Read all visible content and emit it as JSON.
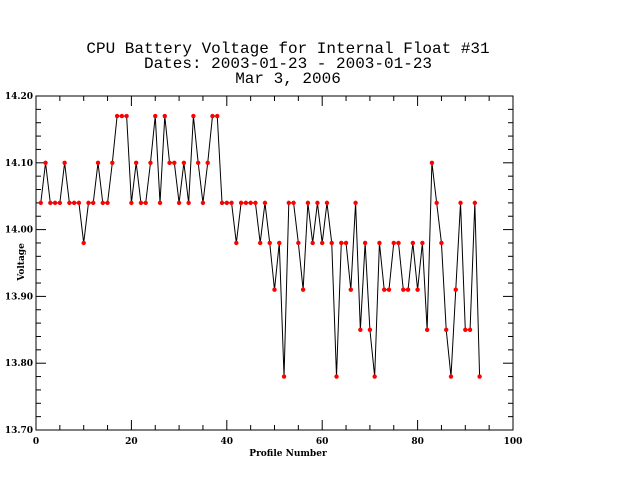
{
  "chart_data": {
    "type": "line",
    "title": [
      "CPU Battery Voltage for Internal Float #31",
      "Dates:  2003-01-23 -  2003-01-23",
      "Mar  3, 2006"
    ],
    "xlabel": "Profile Number",
    "ylabel": "Voltage",
    "xlim": [
      0,
      100
    ],
    "ylim": [
      13.7,
      14.2
    ],
    "xticks": [
      0,
      20,
      40,
      60,
      80,
      100
    ],
    "xtick_labels": [
      "0",
      "20",
      "40",
      "60",
      "80",
      "100"
    ],
    "yticks": [
      13.7,
      13.8,
      13.9,
      14.0,
      14.1,
      14.2
    ],
    "ytick_labels": [
      "13.70",
      "13.80",
      "13.90",
      "14.00",
      "14.10",
      "14.20"
    ],
    "grid": false,
    "line_color": "#000000",
    "marker_color": "#ff0000",
    "series": [
      {
        "x": [
          1,
          2,
          3,
          4,
          5,
          6,
          7,
          8,
          9,
          10,
          11,
          12,
          13,
          14,
          15,
          16,
          17,
          18,
          19,
          20,
          21,
          22,
          23,
          24,
          25,
          26,
          27,
          28,
          29,
          30,
          31,
          32,
          33,
          34,
          35,
          36,
          37,
          38,
          39,
          40,
          41,
          42,
          43,
          44,
          45,
          46,
          47,
          48,
          49,
          50,
          51,
          52,
          53,
          54,
          55,
          56,
          57,
          58,
          59,
          60,
          61,
          62,
          63,
          64,
          65,
          66,
          67,
          68,
          69,
          70,
          71,
          72,
          73,
          74,
          75,
          76,
          77,
          78,
          79,
          80,
          81,
          82,
          83,
          84,
          85,
          86,
          87,
          88,
          89,
          90,
          91,
          92,
          93
        ],
        "y": [
          14.04,
          14.1,
          14.04,
          14.04,
          14.04,
          14.1,
          14.04,
          14.04,
          14.04,
          13.98,
          14.04,
          14.04,
          14.1,
          14.04,
          14.04,
          14.1,
          14.17,
          14.17,
          14.17,
          14.04,
          14.1,
          14.04,
          14.04,
          14.1,
          14.17,
          14.04,
          14.17,
          14.1,
          14.1,
          14.04,
          14.1,
          14.04,
          14.17,
          14.1,
          14.04,
          14.1,
          14.17,
          14.17,
          14.04,
          14.04,
          14.04,
          13.98,
          14.04,
          14.04,
          14.04,
          14.04,
          13.98,
          14.04,
          13.98,
          13.91,
          13.98,
          13.78,
          14.04,
          14.04,
          13.98,
          13.91,
          14.04,
          13.98,
          14.04,
          13.98,
          14.04,
          13.98,
          13.78,
          13.98,
          13.98,
          13.91,
          14.04,
          13.85,
          13.98,
          13.85,
          13.78,
          13.98,
          13.91,
          13.91,
          13.98,
          13.98,
          13.91,
          13.91,
          13.98,
          13.91,
          13.98,
          13.85,
          14.1,
          14.04,
          13.98,
          13.85,
          13.78,
          13.91,
          14.04,
          13.85,
          13.85,
          14.04,
          13.78
        ]
      }
    ]
  }
}
